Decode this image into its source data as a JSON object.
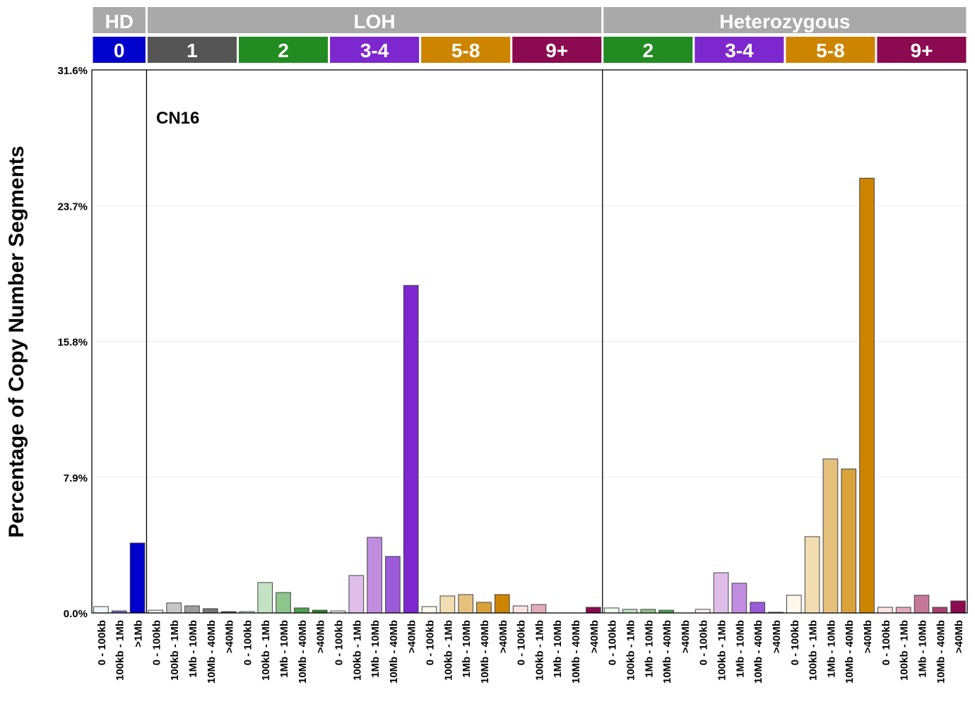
{
  "chart_data": {
    "type": "bar",
    "ylabel": "Percentage of Copy Number Segments",
    "annotation": "CN16",
    "ylim": [
      0,
      31.6
    ],
    "yticks": [
      "0.0%",
      "7.9%",
      "15.8%",
      "23.7%",
      "31.6%"
    ],
    "ytick_values": [
      0,
      7.9,
      15.8,
      23.7,
      31.6
    ],
    "grid": true,
    "top_strips": [
      {
        "label": "HD",
        "color": "#A9A9A9"
      },
      {
        "label": "LOH",
        "color": "#A9A9A9"
      },
      {
        "label": "Heterozygous",
        "color": "#A9A9A9"
      }
    ],
    "groups": [
      {
        "section": "HD",
        "label": "0",
        "color": "#0000CD",
        "categories": [
          "0 - 100kb",
          "100kb - 1Mb",
          ">1Mb"
        ],
        "colors": [
          "#F0F8FF",
          "#6B6BDE",
          "#0000CD"
        ],
        "values": [
          0.37,
          0.12,
          4.07
        ]
      },
      {
        "section": "LOH",
        "label": "1",
        "color": "#555555",
        "categories": [
          "0 - 100kb",
          "100kb - 1Mb",
          "1Mb - 10Mb",
          "10Mb - 40Mb",
          ">40Mb"
        ],
        "colors": [
          "#F0F0F0",
          "#C6C6C6",
          "#9E9E9E",
          "#777777",
          "#555555"
        ],
        "values": [
          0.16,
          0.58,
          0.41,
          0.25,
          0.08
        ]
      },
      {
        "section": "LOH",
        "label": "2",
        "color": "#228B22",
        "categories": [
          "0 - 100kb",
          "100kb - 1Mb",
          "1Mb - 10Mb",
          "10Mb - 40Mb",
          ">40Mb"
        ],
        "colors": [
          "#F0FFF0",
          "#C3E3C3",
          "#8DC58D",
          "#4FA24F",
          "#228B22"
        ],
        "values": [
          0.08,
          1.77,
          1.19,
          0.29,
          0.16
        ]
      },
      {
        "section": "LOH",
        "label": "3-4",
        "color": "#7D27CE",
        "categories": [
          "0 - 100kb",
          "100kb - 1Mb",
          "1Mb - 10Mb",
          "10Mb - 40Mb",
          ">40Mb"
        ],
        "colors": [
          "#FFF0F5",
          "#E0BEEA",
          "#C08DE0",
          "#9B5AD8",
          "#7D27CE"
        ],
        "values": [
          0.12,
          2.18,
          4.4,
          3.29,
          19.06
        ]
      },
      {
        "section": "LOH",
        "label": "5-8",
        "color": "#CD8500",
        "categories": [
          "0 - 100kb",
          "100kb - 1Mb",
          "1Mb - 10Mb",
          "10Mb - 40Mb",
          ">40Mb"
        ],
        "colors": [
          "#FFF8EB",
          "#F2DDB2",
          "#E6C17D",
          "#DAA23B",
          "#CD8500"
        ],
        "values": [
          0.37,
          0.99,
          1.07,
          0.62,
          1.07
        ]
      },
      {
        "section": "LOH",
        "label": "9+",
        "color": "#8B0A50",
        "categories": [
          "0 - 100kb",
          "100kb - 1Mb",
          "1Mb - 10Mb",
          "10Mb - 40Mb",
          ">40Mb"
        ],
        "colors": [
          "#FFE4E1",
          "#E2ACBA",
          "#C57896",
          "#A84070",
          "#8B0A50"
        ],
        "values": [
          0.41,
          0.49,
          0,
          0,
          0.33
        ]
      },
      {
        "section": "Heterozygous",
        "label": "2",
        "color": "#228B22",
        "categories": [
          "0 - 100kb",
          "100kb - 1Mb",
          "1Mb - 10Mb",
          "10Mb - 40Mb",
          ">40Mb"
        ],
        "colors": [
          "#F0FFF0",
          "#C3E3C3",
          "#8DC58D",
          "#4FA24F",
          "#228B22"
        ],
        "values": [
          0.29,
          0.21,
          0.21,
          0.16,
          0
        ]
      },
      {
        "section": "Heterozygous",
        "label": "3-4",
        "color": "#7D27CE",
        "categories": [
          "0 - 100kb",
          "100kb - 1Mb",
          "1Mb - 10Mb",
          "10Mb - 40Mb",
          ">40Mb"
        ],
        "colors": [
          "#FFF0F5",
          "#E0BEEA",
          "#C08DE0",
          "#9B5AD8",
          "#7D27CE"
        ],
        "values": [
          0.21,
          2.34,
          1.73,
          0.62,
          0.04
        ]
      },
      {
        "section": "Heterozygous",
        "label": "5-8",
        "color": "#CD8500",
        "categories": [
          "0 - 100kb",
          "100kb - 1Mb",
          "1Mb - 10Mb",
          "10Mb - 40Mb",
          ">40Mb"
        ],
        "colors": [
          "#FFF8EB",
          "#F2DDB2",
          "#E6C17D",
          "#DAA23B",
          "#CD8500"
        ],
        "values": [
          1.03,
          4.44,
          8.96,
          8.38,
          25.3
        ]
      },
      {
        "section": "Heterozygous",
        "label": "9+",
        "color": "#8B0A50",
        "categories": [
          "0 - 100kb",
          "100kb - 1Mb",
          "1Mb - 10Mb",
          "10Mb - 40Mb",
          ">40Mb"
        ],
        "colors": [
          "#FFE4E1",
          "#E2ACBA",
          "#C57896",
          "#A84070",
          "#8B0A50"
        ],
        "values": [
          0.33,
          0.33,
          1.03,
          0.33,
          0.7
        ]
      }
    ]
  }
}
